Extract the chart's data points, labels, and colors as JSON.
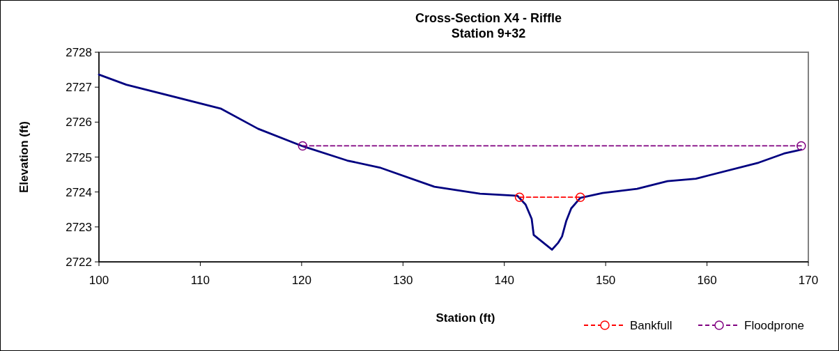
{
  "chart_data": {
    "type": "line",
    "title": "Cross-Section X4 - Riffle\nStation 9+32",
    "xlabel": "Station (ft)",
    "ylabel": "Elevation (ft)",
    "xlim": [
      100,
      170
    ],
    "xticks": [
      100,
      110,
      120,
      130,
      140,
      150,
      160,
      170
    ],
    "ylim": [
      2722,
      2728
    ],
    "yticks": [
      2722,
      2723,
      2724,
      2725,
      2726,
      2727,
      2728
    ],
    "grid": false,
    "legend": "bottom right",
    "series": [
      {
        "color": "#000080",
        "marker": "none",
        "line_style": "solid",
        "x": [
          100,
          102.7,
          112,
          115.7,
          120.1,
          124.5,
          127.7,
          133.1,
          137.6,
          141.3,
          142.1,
          142.7,
          142.9,
          144.7,
          145.3,
          145.7,
          146.1,
          146.6,
          147.5,
          149.7,
          153.1,
          156.1,
          158.9,
          165.1,
          167.6,
          169.3
        ],
        "values": [
          2727.36,
          2727.07,
          2726.39,
          2725.81,
          2725.31,
          2724.9,
          2724.7,
          2724.15,
          2723.95,
          2723.89,
          2723.64,
          2723.23,
          2722.77,
          2722.35,
          2722.54,
          2722.73,
          2723.16,
          2723.53,
          2723.83,
          2723.97,
          2724.09,
          2724.31,
          2724.38,
          2724.84,
          2725.1,
          2725.21
        ]
      },
      {
        "name": "Bankfull",
        "color": "#ff0000",
        "marker": "circle",
        "line_style": "dashed",
        "x": [
          141.5,
          147.5
        ],
        "values": [
          2723.85,
          2723.85
        ]
      },
      {
        "name": "Floodprone",
        "color": "#800080",
        "marker": "circle",
        "line_style": "dashed",
        "x": [
          120.1,
          169.3
        ],
        "values": [
          2725.32,
          2725.32
        ]
      }
    ]
  }
}
